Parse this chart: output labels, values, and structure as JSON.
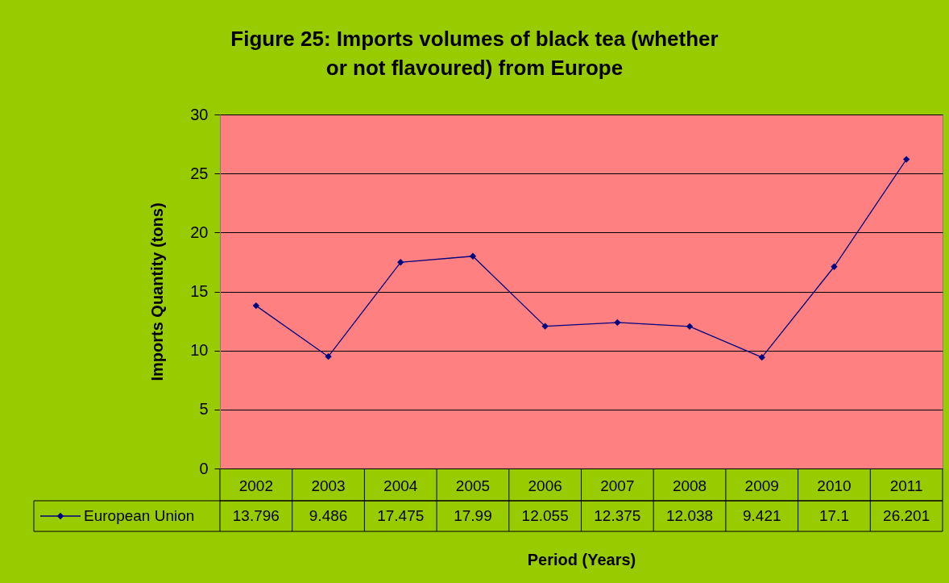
{
  "chart_data": {
    "type": "line",
    "title": "Figure 25: Imports volumes of black tea (whether or not flavoured) from Europe",
    "xlabel": "Period (Years)",
    "ylabel": "Imports Quantity (tons)",
    "categories": [
      "2002",
      "2003",
      "2004",
      "2005",
      "2006",
      "2007",
      "2008",
      "2009",
      "2010",
      "2011"
    ],
    "series": [
      {
        "name": "European Union",
        "color": "#000080",
        "values": [
          13.796,
          9.486,
          17.475,
          17.99,
          12.055,
          12.375,
          12.038,
          9.421,
          17.1,
          26.201
        ]
      }
    ],
    "ylim": [
      0,
      30
    ],
    "yticks": [
      0,
      5,
      10,
      15,
      20,
      25,
      30
    ],
    "grid": "y",
    "marker": "diamond",
    "line_style": "solid",
    "data_labels": true,
    "legend": "bottom left"
  }
}
